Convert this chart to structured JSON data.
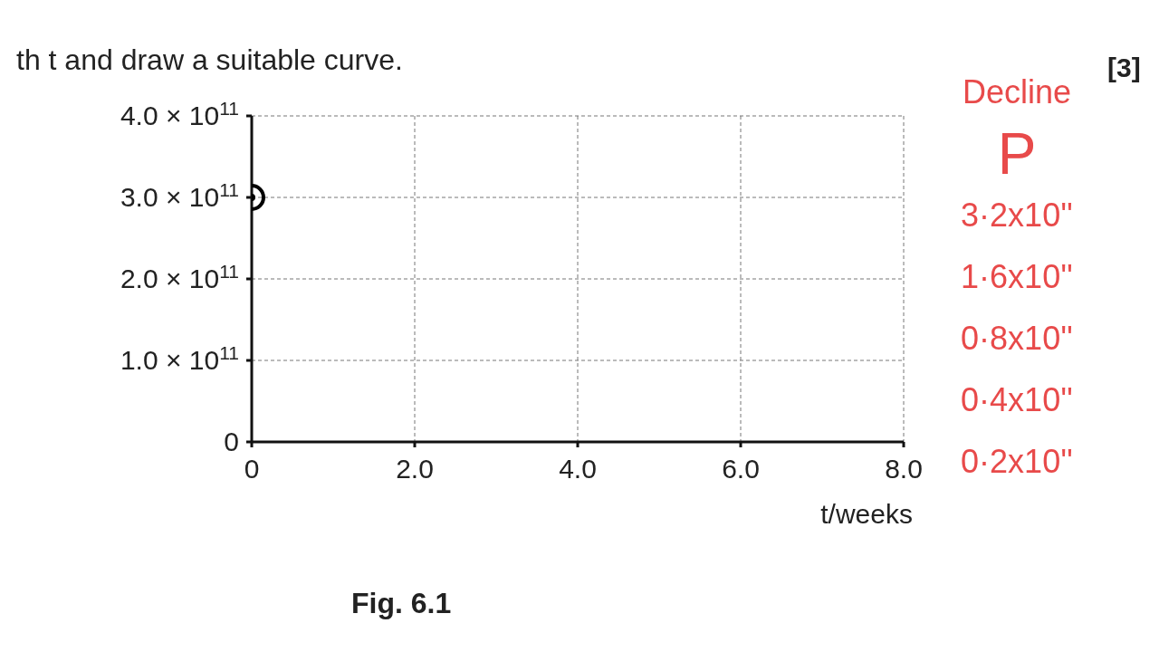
{
  "chart_data": {
    "type": "scatter",
    "title": "th t and draw a suitable curve.",
    "xlabel": "t/weeks",
    "x": [
      0
    ],
    "series": [
      {
        "color": "#000000",
        "values": [
          300000000000.0
        ]
      }
    ],
    "xlim": [
      0,
      8
    ],
    "xticks": [
      0,
      {
        "value": 2,
        "label": "2.0"
      },
      {
        "value": 4,
        "label": "4.0"
      },
      {
        "value": 6,
        "label": "6.0"
      },
      {
        "value": 8,
        "label": "8.0"
      }
    ],
    "ylim": [
      0,
      400000000000.0
    ],
    "yticks": [
      0,
      {
        "value": 100000000000.0,
        "label": "1.0 × 10$^{11}$"
      },
      {
        "value": 200000000000.0,
        "label": "2.0 × 10$^{11}$"
      },
      {
        "value": 300000000000.0,
        "label": "3.0 × 10$^{11}$"
      },
      {
        "value": 400000000000.0,
        "label": "4.0 × 10$^{11}$"
      }
    ],
    "grid": true,
    "marker": "circle",
    "annotations": [
      "Fig. 6.1",
      "[3]",
      "Decline",
      "P",
      "3·2x10''",
      "1·6x10''",
      "0·8x10''",
      "0·4x10''",
      "0·2x10''"
    ]
  }
}
